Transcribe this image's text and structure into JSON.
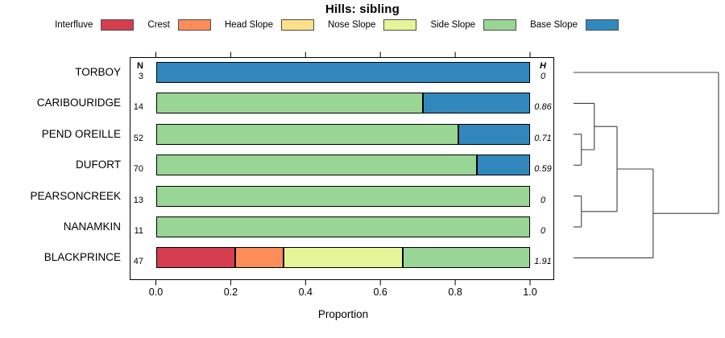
{
  "title": "Hills: sibling",
  "columns": {
    "n_header": "N",
    "h_header": "H"
  },
  "legend": {
    "items": [
      {
        "key": "interfluve",
        "label": "Interfluve",
        "color": "#D53E4F"
      },
      {
        "key": "crest",
        "label": "Crest",
        "color": "#FC8D59"
      },
      {
        "key": "head_slope",
        "label": "Head Slope",
        "color": "#FEE08B"
      },
      {
        "key": "nose_slope",
        "label": "Nose Slope",
        "color": "#E6F598"
      },
      {
        "key": "side_slope",
        "label": "Side Slope",
        "color": "#99D594"
      },
      {
        "key": "base_slope",
        "label": "Base Slope",
        "color": "#3288BD"
      }
    ]
  },
  "chart_data": {
    "type": "bar",
    "stacked": true,
    "orientation": "horizontal",
    "title": "Hills: sibling",
    "xlabel": "Proportion",
    "xlim": [
      0,
      1
    ],
    "x_ticks": [
      "0.0",
      "0.2",
      "0.4",
      "0.6",
      "0.8",
      "1.0"
    ],
    "grid": false,
    "categories": [
      "Interfluve",
      "Crest",
      "Head Slope",
      "Nose Slope",
      "Side Slope",
      "Base Slope"
    ],
    "rows": [
      {
        "label": "TORBOY",
        "n": 3,
        "h": "0",
        "segments": [
          {
            "key": "base_slope",
            "value": 1.0
          }
        ]
      },
      {
        "label": "CARIBOURIDGE",
        "n": 14,
        "h": "0.86",
        "segments": [
          {
            "key": "side_slope",
            "value": 0.7143
          },
          {
            "key": "base_slope",
            "value": 0.2857
          }
        ]
      },
      {
        "label": "PEND OREILLE",
        "n": 52,
        "h": "0.71",
        "segments": [
          {
            "key": "side_slope",
            "value": 0.8077
          },
          {
            "key": "base_slope",
            "value": 0.1923
          }
        ]
      },
      {
        "label": "DUFORT",
        "n": 70,
        "h": "0.59",
        "segments": [
          {
            "key": "side_slope",
            "value": 0.8571
          },
          {
            "key": "base_slope",
            "value": 0.1429
          }
        ]
      },
      {
        "label": "PEARSONCREEK",
        "n": 13,
        "h": "0",
        "segments": [
          {
            "key": "side_slope",
            "value": 1.0
          }
        ]
      },
      {
        "label": "NANAMKIN",
        "n": 11,
        "h": "0",
        "segments": [
          {
            "key": "side_slope",
            "value": 1.0
          }
        ]
      },
      {
        "label": "BLACKPRINCE",
        "n": 47,
        "h": "1.91",
        "segments": [
          {
            "key": "interfluve",
            "value": 0.2128
          },
          {
            "key": "crest",
            "value": 0.1277
          },
          {
            "key": "nose_slope",
            "value": 0.3191
          },
          {
            "key": "side_slope",
            "value": 0.3404
          }
        ]
      }
    ],
    "dendrogram": {
      "note": "heights are relative 0-1 across dendrogram width",
      "merges": [
        {
          "a": "PEND OREILLE",
          "b": "DUFORT",
          "height": 0.054
        },
        {
          "a": "PEARSONCREEK",
          "b": "NANAMKIN",
          "height": 0.054
        },
        {
          "a": "CARIBOURIDGE",
          "b": "#0",
          "height": 0.143
        },
        {
          "a": "#2",
          "b": "#1",
          "height": 0.3
        },
        {
          "a": "#3",
          "b": "BLACKPRINCE",
          "height": 0.549
        },
        {
          "a": "TORBOY",
          "b": "#4",
          "height": 1.0
        }
      ]
    }
  }
}
